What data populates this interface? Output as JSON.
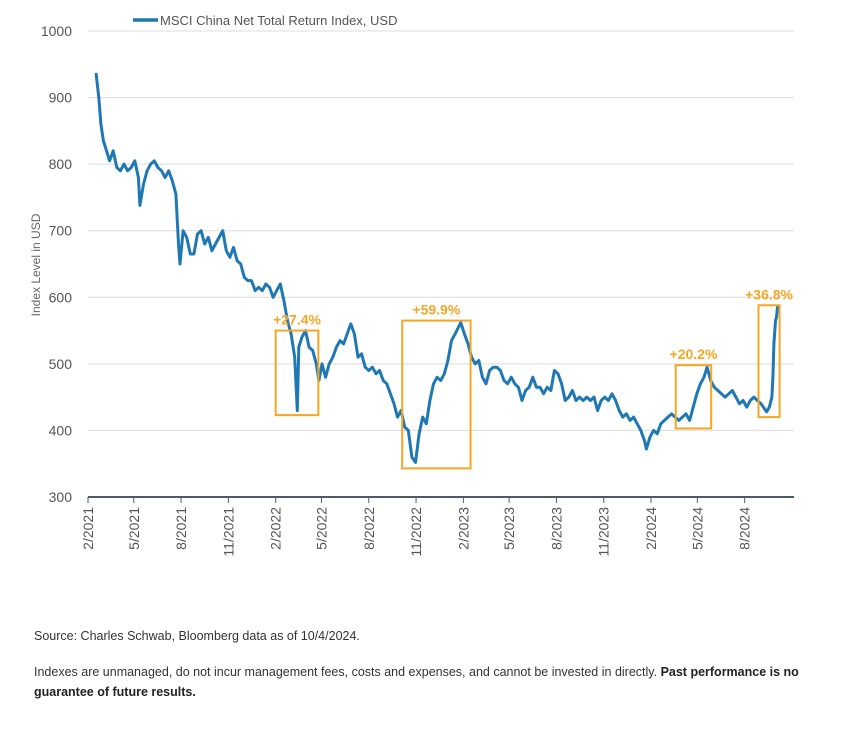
{
  "chart_data": {
    "type": "line",
    "ylabel": "Index Level in USD",
    "ylim": [
      300,
      1000
    ],
    "yticks": [
      300,
      400,
      500,
      600,
      700,
      800,
      900,
      1000
    ],
    "xticks": [
      "2/2021",
      "5/2021",
      "8/2021",
      "11/2021",
      "2/2022",
      "5/2022",
      "8/2022",
      "11/2022",
      "2/2023",
      "5/2023",
      "8/2023",
      "11/2023",
      "2/2024",
      "5/2024",
      "8/2024"
    ],
    "grid": true,
    "legend_position": "top-left",
    "series": [
      {
        "name": "MSCI China Net Total Return Index, USD",
        "color": "#1f78b4",
        "points": [
          [
            "2021-02-17",
            935
          ],
          [
            "2021-02-22",
            900
          ],
          [
            "2021-02-26",
            860
          ],
          [
            "2021-03-03",
            835
          ],
          [
            "2021-03-09",
            820
          ],
          [
            "2021-03-15",
            805
          ],
          [
            "2021-03-22",
            820
          ],
          [
            "2021-03-29",
            795
          ],
          [
            "2021-04-05",
            790
          ],
          [
            "2021-04-12",
            800
          ],
          [
            "2021-04-19",
            790
          ],
          [
            "2021-04-26",
            795
          ],
          [
            "2021-05-03",
            805
          ],
          [
            "2021-05-10",
            780
          ],
          [
            "2021-05-13",
            738
          ],
          [
            "2021-05-20",
            770
          ],
          [
            "2021-05-27",
            790
          ],
          [
            "2021-06-03",
            800
          ],
          [
            "2021-06-10",
            805
          ],
          [
            "2021-06-17",
            795
          ],
          [
            "2021-06-24",
            790
          ],
          [
            "2021-07-01",
            780
          ],
          [
            "2021-07-08",
            790
          ],
          [
            "2021-07-15",
            775
          ],
          [
            "2021-07-22",
            755
          ],
          [
            "2021-07-27",
            680
          ],
          [
            "2021-07-30",
            650
          ],
          [
            "2021-08-05",
            700
          ],
          [
            "2021-08-12",
            690
          ],
          [
            "2021-08-19",
            665
          ],
          [
            "2021-08-26",
            665
          ],
          [
            "2021-09-02",
            695
          ],
          [
            "2021-09-09",
            700
          ],
          [
            "2021-09-16",
            680
          ],
          [
            "2021-09-23",
            690
          ],
          [
            "2021-09-30",
            670
          ],
          [
            "2021-10-07",
            680
          ],
          [
            "2021-10-14",
            690
          ],
          [
            "2021-10-21",
            700
          ],
          [
            "2021-10-28",
            670
          ],
          [
            "2021-11-04",
            660
          ],
          [
            "2021-11-11",
            675
          ],
          [
            "2021-11-18",
            655
          ],
          [
            "2021-11-25",
            650
          ],
          [
            "2021-12-02",
            630
          ],
          [
            "2021-12-09",
            625
          ],
          [
            "2021-12-16",
            625
          ],
          [
            "2021-12-23",
            610
          ],
          [
            "2021-12-30",
            615
          ],
          [
            "2022-01-06",
            610
          ],
          [
            "2022-01-13",
            620
          ],
          [
            "2022-01-20",
            615
          ],
          [
            "2022-01-27",
            600
          ],
          [
            "2022-02-03",
            610
          ],
          [
            "2022-02-10",
            620
          ],
          [
            "2022-02-17",
            595
          ],
          [
            "2022-02-24",
            565
          ],
          [
            "2022-03-03",
            545
          ],
          [
            "2022-03-10",
            510
          ],
          [
            "2022-03-15",
            430
          ],
          [
            "2022-03-18",
            525
          ],
          [
            "2022-03-24",
            540
          ],
          [
            "2022-03-31",
            550
          ],
          [
            "2022-04-07",
            525
          ],
          [
            "2022-04-14",
            520
          ],
          [
            "2022-04-21",
            500
          ],
          [
            "2022-04-26",
            475
          ],
          [
            "2022-05-02",
            500
          ],
          [
            "2022-05-09",
            480
          ],
          [
            "2022-05-16",
            500
          ],
          [
            "2022-05-23",
            510
          ],
          [
            "2022-05-30",
            525
          ],
          [
            "2022-06-06",
            535
          ],
          [
            "2022-06-13",
            530
          ],
          [
            "2022-06-20",
            545
          ],
          [
            "2022-06-27",
            560
          ],
          [
            "2022-07-04",
            545
          ],
          [
            "2022-07-11",
            510
          ],
          [
            "2022-07-18",
            515
          ],
          [
            "2022-07-25",
            495
          ],
          [
            "2022-08-01",
            490
          ],
          [
            "2022-08-08",
            495
          ],
          [
            "2022-08-15",
            485
          ],
          [
            "2022-08-22",
            490
          ],
          [
            "2022-08-29",
            475
          ],
          [
            "2022-09-05",
            470
          ],
          [
            "2022-09-12",
            455
          ],
          [
            "2022-09-19",
            440
          ],
          [
            "2022-09-26",
            420
          ],
          [
            "2022-10-03",
            430
          ],
          [
            "2022-10-10",
            405
          ],
          [
            "2022-10-17",
            400
          ],
          [
            "2022-10-24",
            360
          ],
          [
            "2022-10-31",
            352
          ],
          [
            "2022-11-07",
            395
          ],
          [
            "2022-11-14",
            420
          ],
          [
            "2022-11-21",
            410
          ],
          [
            "2022-11-28",
            445
          ],
          [
            "2022-12-05",
            470
          ],
          [
            "2022-12-12",
            480
          ],
          [
            "2022-12-19",
            475
          ],
          [
            "2022-12-26",
            485
          ],
          [
            "2023-01-02",
            505
          ],
          [
            "2023-01-09",
            535
          ],
          [
            "2023-01-16",
            545
          ],
          [
            "2023-01-27",
            562
          ],
          [
            "2023-02-03",
            545
          ],
          [
            "2023-02-10",
            530
          ],
          [
            "2023-02-17",
            510
          ],
          [
            "2023-02-24",
            500
          ],
          [
            "2023-03-03",
            505
          ],
          [
            "2023-03-10",
            480
          ],
          [
            "2023-03-17",
            470
          ],
          [
            "2023-03-24",
            490
          ],
          [
            "2023-03-31",
            495
          ],
          [
            "2023-04-07",
            495
          ],
          [
            "2023-04-14",
            490
          ],
          [
            "2023-04-21",
            475
          ],
          [
            "2023-04-28",
            470
          ],
          [
            "2023-05-05",
            480
          ],
          [
            "2023-05-12",
            470
          ],
          [
            "2023-05-19",
            465
          ],
          [
            "2023-05-26",
            445
          ],
          [
            "2023-06-02",
            460
          ],
          [
            "2023-06-09",
            465
          ],
          [
            "2023-06-16",
            480
          ],
          [
            "2023-06-23",
            465
          ],
          [
            "2023-06-30",
            465
          ],
          [
            "2023-07-07",
            455
          ],
          [
            "2023-07-14",
            465
          ],
          [
            "2023-07-21",
            460
          ],
          [
            "2023-07-28",
            490
          ],
          [
            "2023-08-04",
            485
          ],
          [
            "2023-08-11",
            470
          ],
          [
            "2023-08-18",
            445
          ],
          [
            "2023-08-25",
            450
          ],
          [
            "2023-09-01",
            460
          ],
          [
            "2023-09-08",
            445
          ],
          [
            "2023-09-15",
            450
          ],
          [
            "2023-09-22",
            445
          ],
          [
            "2023-09-29",
            450
          ],
          [
            "2023-10-06",
            445
          ],
          [
            "2023-10-13",
            450
          ],
          [
            "2023-10-20",
            430
          ],
          [
            "2023-10-27",
            445
          ],
          [
            "2023-11-03",
            450
          ],
          [
            "2023-11-10",
            445
          ],
          [
            "2023-11-17",
            455
          ],
          [
            "2023-11-24",
            445
          ],
          [
            "2023-12-01",
            430
          ],
          [
            "2023-12-08",
            420
          ],
          [
            "2023-12-15",
            425
          ],
          [
            "2023-12-22",
            415
          ],
          [
            "2023-12-29",
            420
          ],
          [
            "2024-01-05",
            410
          ],
          [
            "2024-01-12",
            400
          ],
          [
            "2024-01-19",
            385
          ],
          [
            "2024-01-23",
            372
          ],
          [
            "2024-01-30",
            390
          ],
          [
            "2024-02-06",
            400
          ],
          [
            "2024-02-13",
            395
          ],
          [
            "2024-02-20",
            410
          ],
          [
            "2024-02-27",
            415
          ],
          [
            "2024-03-05",
            420
          ],
          [
            "2024-03-12",
            425
          ],
          [
            "2024-03-19",
            420
          ],
          [
            "2024-03-26",
            415
          ],
          [
            "2024-04-02",
            420
          ],
          [
            "2024-04-09",
            425
          ],
          [
            "2024-04-16",
            415
          ],
          [
            "2024-04-23",
            435
          ],
          [
            "2024-04-30",
            455
          ],
          [
            "2024-05-07",
            470
          ],
          [
            "2024-05-14",
            480
          ],
          [
            "2024-05-20",
            495
          ],
          [
            "2024-05-27",
            475
          ],
          [
            "2024-06-03",
            465
          ],
          [
            "2024-06-10",
            460
          ],
          [
            "2024-06-17",
            455
          ],
          [
            "2024-06-24",
            450
          ],
          [
            "2024-07-01",
            455
          ],
          [
            "2024-07-08",
            460
          ],
          [
            "2024-07-15",
            450
          ],
          [
            "2024-07-22",
            440
          ],
          [
            "2024-07-29",
            445
          ],
          [
            "2024-08-05",
            435
          ],
          [
            "2024-08-12",
            445
          ],
          [
            "2024-08-19",
            450
          ],
          [
            "2024-08-26",
            445
          ],
          [
            "2024-09-02",
            440
          ],
          [
            "2024-09-09",
            432
          ],
          [
            "2024-09-13",
            428
          ],
          [
            "2024-09-18",
            435
          ],
          [
            "2024-09-23",
            450
          ],
          [
            "2024-09-25",
            480
          ],
          [
            "2024-09-27",
            530
          ],
          [
            "2024-09-30",
            565
          ],
          [
            "2024-10-02",
            570
          ],
          [
            "2024-10-04",
            585
          ]
        ]
      }
    ],
    "annotations": [
      {
        "label": "+27.4%",
        "x0": "2022-02-01",
        "x1": "2022-04-25",
        "y0": 423,
        "y1": 550,
        "color": "#f5a623"
      },
      {
        "label": "+59.9%",
        "x0": "2022-10-05",
        "x1": "2023-02-15",
        "y0": 343,
        "y1": 565,
        "color": "#f5a623"
      },
      {
        "label": "+20.2%",
        "x0": "2024-03-20",
        "x1": "2024-05-28",
        "y0": 403,
        "y1": 498,
        "color": "#f5a623"
      },
      {
        "label": "+36.8%",
        "x0": "2024-08-28",
        "x1": "2024-10-08",
        "y0": 420,
        "y1": 588,
        "color": "#f5a623"
      }
    ]
  },
  "footer": {
    "source": "Source: Charles Schwab, Bloomberg data as of 10/4/2024.",
    "disclaimer": "Indexes are unmanaged, do not incur management fees, costs and expenses, and cannot be invested in directly.",
    "disclaimer_bold": "Past performance is no guarantee of future results."
  }
}
